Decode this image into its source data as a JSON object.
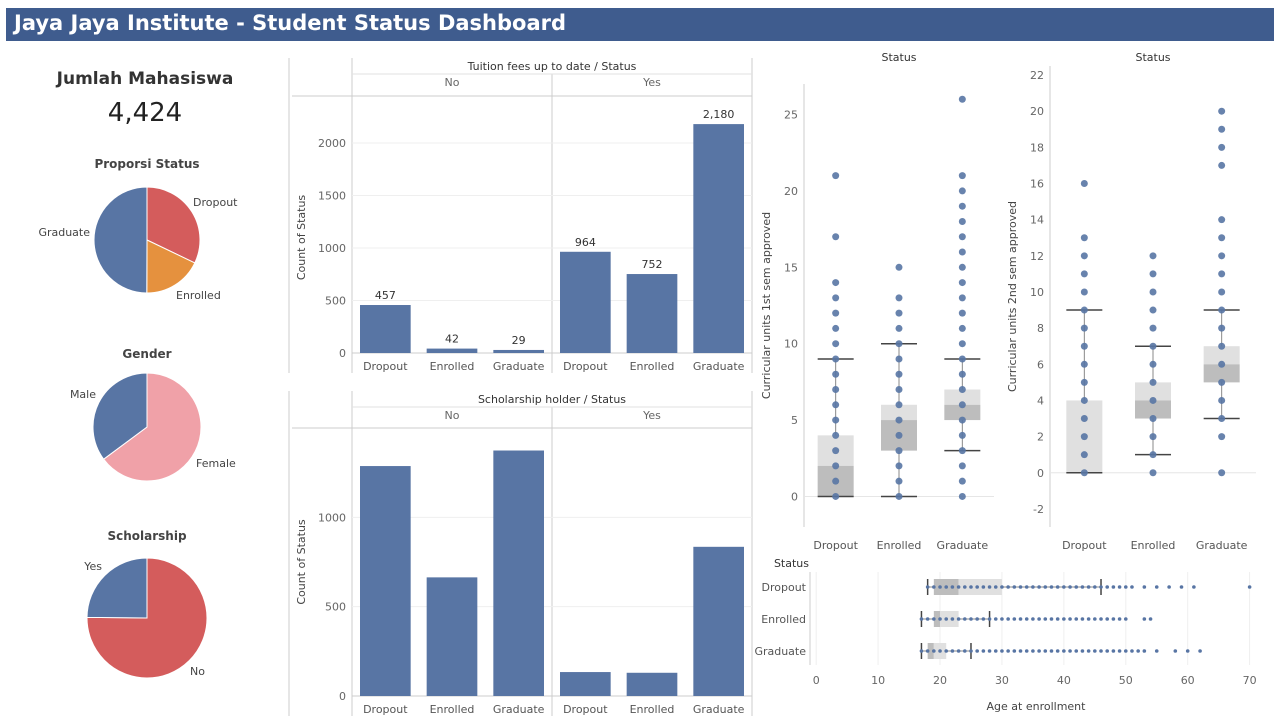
{
  "header": {
    "title": "Jaya Jaya Institute - Student Status Dashboard"
  },
  "kpi": {
    "label": "Jumlah Mahasiswa",
    "value": "4,424"
  },
  "colors": {
    "blue": "#5875a4",
    "red": "#d45c5c",
    "orange": "#e5913e",
    "pink": "#f0a1a8",
    "header": "#3f5c8e"
  },
  "chart_data": [
    {
      "id": "proporsi",
      "type": "pie",
      "title": "Proporsi Status",
      "labels": [
        "Dropout",
        "Enrolled",
        "Graduate"
      ],
      "values": [
        1421,
        794,
        2209
      ],
      "colors": [
        "#d45c5c",
        "#e5913e",
        "#5875a4"
      ]
    },
    {
      "id": "gender",
      "type": "pie",
      "title": "Gender",
      "labels": [
        "Female",
        "Male"
      ],
      "values": [
        2868,
        1556
      ],
      "colors": [
        "#f0a1a8",
        "#5875a4"
      ]
    },
    {
      "id": "scholarship",
      "type": "pie",
      "title": "Scholarship",
      "labels": [
        "No",
        "Yes"
      ],
      "values": [
        3325,
        1099
      ],
      "colors": [
        "#d45c5c",
        "#5875a4"
      ]
    },
    {
      "id": "tuition",
      "type": "bar",
      "title": "Tuition fees up to date / Status",
      "ylabel": "Count of Status",
      "ylim": [
        0,
        2200
      ],
      "yticks": [
        0,
        500,
        1000,
        1500,
        2000
      ],
      "panels": [
        {
          "name": "No",
          "categories": [
            "Dropout",
            "Enrolled",
            "Graduate"
          ],
          "values": [
            457,
            42,
            29
          ]
        },
        {
          "name": "Yes",
          "categories": [
            "Dropout",
            "Enrolled",
            "Graduate"
          ],
          "values": [
            964,
            752,
            2180
          ]
        }
      ],
      "value_labels": [
        "457",
        "42",
        "29",
        "964",
        "752",
        "2,180"
      ]
    },
    {
      "id": "scholar",
      "type": "bar",
      "title": "Scholarship holder / Status",
      "ylabel": "Count of Status",
      "ylim": [
        0,
        1500
      ],
      "yticks": [
        0,
        500,
        1000
      ],
      "panels": [
        {
          "name": "No",
          "categories": [
            "Dropout",
            "Enrolled",
            "Graduate"
          ],
          "values": [
            1287,
            664,
            1374
          ]
        },
        {
          "name": "Yes",
          "categories": [
            "Dropout",
            "Enrolled",
            "Graduate"
          ],
          "values": [
            134,
            130,
            835
          ]
        }
      ]
    },
    {
      "id": "units1",
      "type": "scatter",
      "title": "Status",
      "ylabel": "Curricular units 1st sem approved",
      "ylim": [
        -2,
        27
      ],
      "yticks": [
        0,
        5,
        10,
        15,
        20,
        25
      ],
      "categories": [
        "Dropout",
        "Enrolled",
        "Graduate"
      ],
      "points": [
        [
          0,
          1,
          2,
          3,
          4,
          5,
          6,
          7,
          8,
          9,
          10,
          11,
          12,
          13,
          14,
          17,
          21
        ],
        [
          0,
          1,
          2,
          3,
          4,
          5,
          6,
          7,
          8,
          9,
          10,
          11,
          12,
          13,
          15
        ],
        [
          0,
          1,
          2,
          3,
          4,
          5,
          6,
          7,
          8,
          9,
          10,
          11,
          12,
          13,
          14,
          15,
          16,
          17,
          18,
          19,
          20,
          21,
          26
        ]
      ],
      "box": [
        {
          "min": 0,
          "q1": 0,
          "median": 2,
          "q3": 4,
          "max": 9
        },
        {
          "min": 0,
          "q1": 3,
          "median": 5,
          "q3": 6,
          "max": 10
        },
        {
          "min": 3,
          "q1": 5,
          "median": 6,
          "q3": 7,
          "max": 9
        }
      ]
    },
    {
      "id": "units2",
      "type": "scatter",
      "title": "Status",
      "ylabel": "Curricular units 2nd sem approved",
      "ylim": [
        -3,
        22.5
      ],
      "yticks": [
        -2,
        0,
        2,
        4,
        6,
        8,
        10,
        12,
        14,
        16,
        18,
        20,
        22
      ],
      "categories": [
        "Dropout",
        "Enrolled",
        "Graduate"
      ],
      "points": [
        [
          0,
          1,
          2,
          3,
          4,
          5,
          6,
          7,
          8,
          9,
          10,
          11,
          12,
          13,
          16
        ],
        [
          0,
          1,
          2,
          3,
          4,
          5,
          6,
          7,
          8,
          9,
          10,
          11,
          12
        ],
        [
          0,
          2,
          3,
          4,
          5,
          6,
          7,
          8,
          9,
          10,
          11,
          12,
          13,
          14,
          17,
          18,
          19,
          20
        ]
      ],
      "box": [
        {
          "min": 0,
          "q1": 0,
          "median": 0,
          "q3": 4,
          "max": 9
        },
        {
          "min": 1,
          "q1": 3,
          "median": 4,
          "q3": 5,
          "max": 7
        },
        {
          "min": 3,
          "q1": 5,
          "median": 6,
          "q3": 7,
          "max": 9
        }
      ]
    },
    {
      "id": "age",
      "type": "scatter",
      "title": "Status",
      "xlabel": "Age at enrollment",
      "xlim": [
        -1,
        72
      ],
      "xticks": [
        0,
        10,
        20,
        30,
        40,
        50,
        60,
        70
      ],
      "categories": [
        "Dropout",
        "Enrolled",
        "Graduate"
      ],
      "points": [
        [
          18,
          19,
          20,
          21,
          22,
          23,
          24,
          25,
          26,
          27,
          28,
          29,
          30,
          31,
          32,
          33,
          34,
          35,
          36,
          37,
          38,
          39,
          40,
          41,
          42,
          43,
          44,
          45,
          46,
          47,
          48,
          49,
          50,
          51,
          53,
          55,
          57,
          59,
          61,
          70
        ],
        [
          17,
          18,
          19,
          20,
          21,
          22,
          23,
          24,
          25,
          26,
          27,
          28,
          29,
          30,
          31,
          32,
          33,
          34,
          35,
          36,
          37,
          38,
          39,
          40,
          41,
          42,
          43,
          44,
          45,
          46,
          47,
          48,
          49,
          50,
          53,
          54
        ],
        [
          17,
          18,
          19,
          20,
          21,
          22,
          23,
          24,
          25,
          26,
          27,
          28,
          29,
          30,
          31,
          32,
          33,
          34,
          35,
          36,
          37,
          38,
          39,
          40,
          41,
          42,
          43,
          44,
          45,
          46,
          47,
          48,
          49,
          50,
          51,
          52,
          53,
          55,
          58,
          60,
          62
        ]
      ],
      "box": [
        {
          "min": 18,
          "q1": 19,
          "median": 23,
          "q3": 30,
          "max": 46
        },
        {
          "min": 17,
          "q1": 19,
          "median": 20,
          "q3": 23,
          "max": 28
        },
        {
          "min": 17,
          "q1": 18,
          "median": 19,
          "q3": 21,
          "max": 25
        }
      ]
    }
  ]
}
